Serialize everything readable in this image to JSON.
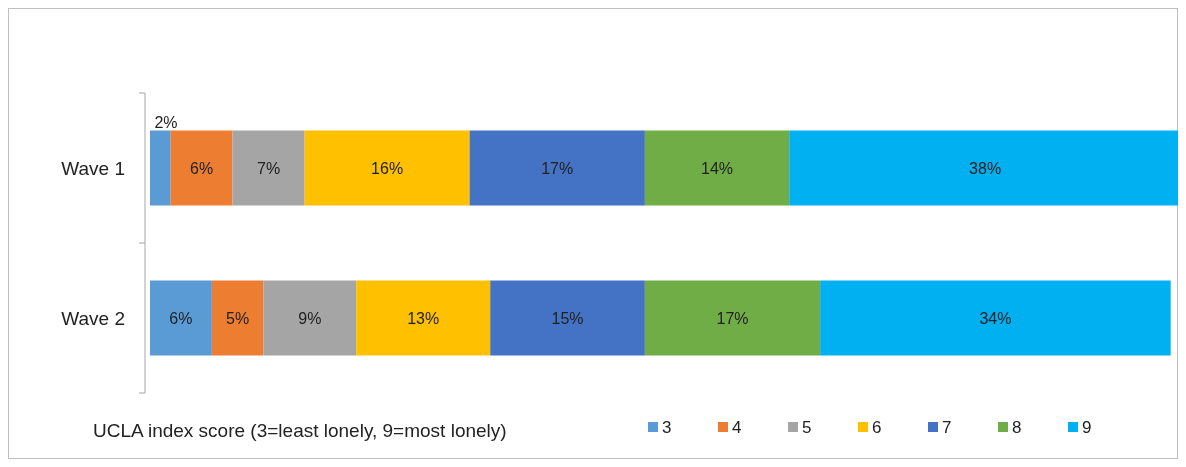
{
  "chart_data": {
    "type": "bar",
    "orientation": "horizontal",
    "stacked": true,
    "categories": [
      "Wave 1",
      "Wave 2"
    ],
    "legend_title": "UCLA index score (3=least lonely, 9=most lonely)",
    "legend": "bottom",
    "grid": false,
    "series": [
      {
        "name": "3",
        "color": "#5b9bd5",
        "values": [
          2,
          6
        ],
        "value_labels": [
          "2%",
          "6%"
        ]
      },
      {
        "name": "4",
        "color": "#ed7d31",
        "values": [
          6,
          5
        ],
        "value_labels": [
          "6%",
          "5%"
        ]
      },
      {
        "name": "5",
        "color": "#a5a5a5",
        "values": [
          7,
          9
        ],
        "value_labels": [
          "7%",
          "9%"
        ]
      },
      {
        "name": "6",
        "color": "#ffc000",
        "values": [
          16,
          13
        ],
        "value_labels": [
          "16%",
          "13%"
        ]
      },
      {
        "name": "7",
        "color": "#4472c4",
        "values": [
          17,
          15
        ],
        "value_labels": [
          "17%",
          "15%"
        ]
      },
      {
        "name": "8",
        "color": "#70ad47",
        "values": [
          14,
          17
        ],
        "value_labels": [
          "14%",
          "17%"
        ]
      },
      {
        "name": "9",
        "color": "#00b0f0",
        "values": [
          38,
          34
        ],
        "value_labels": [
          "38%",
          "34%"
        ]
      }
    ]
  }
}
